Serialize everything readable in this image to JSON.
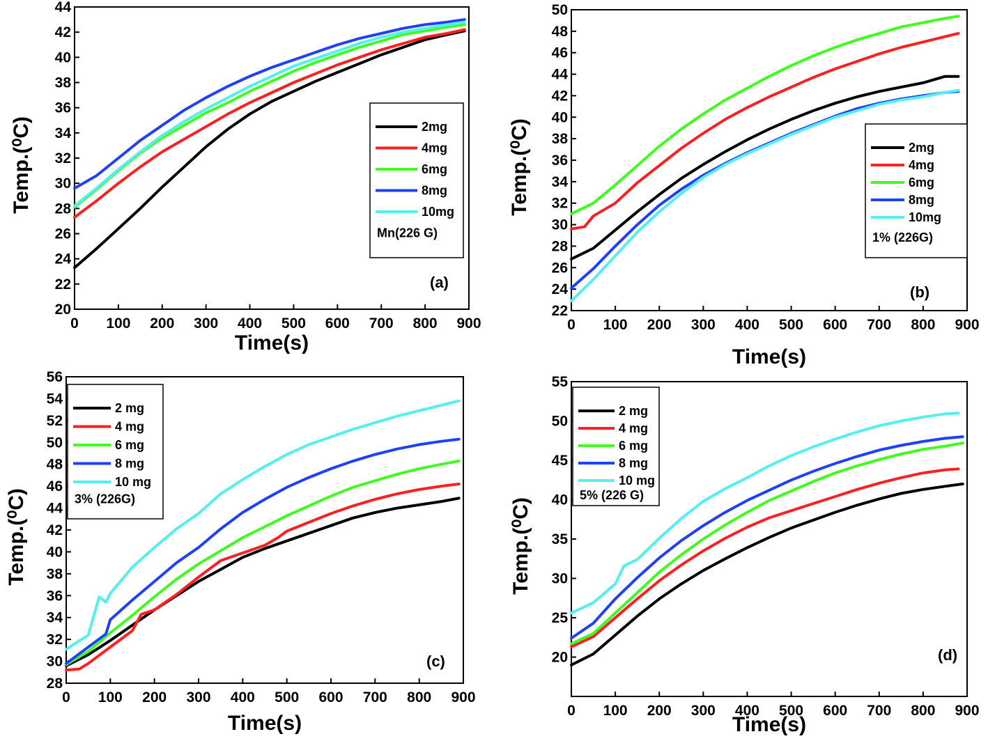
{
  "chart_data": [
    {
      "panel": "(a)",
      "type": "line",
      "xlabel": "Time(s)",
      "ylabel": "Temp.(⁰C)",
      "xlim": [
        0,
        900
      ],
      "ylim": [
        20,
        44
      ],
      "xticks": [
        0,
        100,
        200,
        300,
        400,
        500,
        600,
        700,
        800,
        900
      ],
      "yticks": [
        20,
        22,
        24,
        26,
        28,
        30,
        32,
        34,
        36,
        38,
        40,
        42,
        44
      ],
      "legend_title": "Mn(226 G)",
      "legend_position": "right",
      "series": [
        {
          "name": "2mg",
          "color": "#000000",
          "x": [
            0,
            50,
            100,
            150,
            200,
            250,
            300,
            350,
            400,
            450,
            500,
            550,
            600,
            650,
            700,
            750,
            800,
            850,
            890
          ],
          "y": [
            23.3,
            24.8,
            26.4,
            28.0,
            29.7,
            31.3,
            32.9,
            34.3,
            35.5,
            36.5,
            37.3,
            38.1,
            38.8,
            39.5,
            40.2,
            40.8,
            41.4,
            41.8,
            42.1
          ]
        },
        {
          "name": "4mg",
          "color": "#ff2020",
          "x": [
            0,
            50,
            100,
            150,
            200,
            250,
            300,
            350,
            400,
            450,
            500,
            550,
            600,
            650,
            700,
            750,
            800,
            850,
            890
          ],
          "y": [
            27.3,
            28.6,
            30.0,
            31.3,
            32.5,
            33.5,
            34.5,
            35.5,
            36.4,
            37.2,
            38.0,
            38.7,
            39.4,
            40.0,
            40.6,
            41.1,
            41.6,
            41.9,
            42.2
          ]
        },
        {
          "name": "6mg",
          "color": "#40ff20",
          "x": [
            0,
            50,
            100,
            150,
            200,
            250,
            300,
            350,
            400,
            450,
            500,
            550,
            600,
            650,
            700,
            750,
            800,
            850,
            890
          ],
          "y": [
            28.1,
            29.5,
            31.0,
            32.4,
            33.6,
            34.6,
            35.6,
            36.4,
            37.3,
            38.1,
            38.9,
            39.6,
            40.2,
            40.8,
            41.3,
            41.8,
            42.1,
            42.4,
            42.6
          ]
        },
        {
          "name": "8mg",
          "color": "#2040ff",
          "x": [
            0,
            50,
            100,
            150,
            200,
            250,
            300,
            350,
            400,
            450,
            500,
            550,
            600,
            650,
            700,
            750,
            800,
            850,
            890
          ],
          "y": [
            29.6,
            30.6,
            32.0,
            33.4,
            34.6,
            35.8,
            36.8,
            37.7,
            38.5,
            39.2,
            39.8,
            40.4,
            41.0,
            41.5,
            41.9,
            42.3,
            42.6,
            42.8,
            43.0
          ]
        },
        {
          "name": "10mg",
          "color": "#55f0ee",
          "x": [
            0,
            50,
            100,
            150,
            200,
            250,
            300,
            350,
            400,
            450,
            500,
            550,
            600,
            650,
            700,
            750,
            800,
            850,
            890
          ],
          "y": [
            28.2,
            29.6,
            31.1,
            32.5,
            33.8,
            34.9,
            35.9,
            36.8,
            37.7,
            38.5,
            39.3,
            39.9,
            40.5,
            41.1,
            41.6,
            42.0,
            42.3,
            42.6,
            42.8
          ]
        }
      ]
    },
    {
      "panel": "(b)",
      "type": "line",
      "xlabel": "Time(s)",
      "ylabel": "Temp.(⁰C)",
      "xlim": [
        0,
        900
      ],
      "ylim": [
        22,
        50
      ],
      "xticks": [
        0,
        100,
        200,
        300,
        400,
        500,
        600,
        700,
        800,
        900
      ],
      "yticks": [
        22,
        24,
        26,
        28,
        30,
        32,
        34,
        36,
        38,
        40,
        42,
        44,
        46,
        48,
        50
      ],
      "legend_title": "1% (226G)",
      "legend_position": "right",
      "series": [
        {
          "name": "2mg",
          "color": "#000000",
          "x": [
            0,
            50,
            100,
            150,
            200,
            250,
            300,
            350,
            400,
            450,
            500,
            550,
            600,
            650,
            700,
            750,
            800,
            850,
            880
          ],
          "y": [
            26.8,
            27.8,
            29.5,
            31.2,
            32.8,
            34.3,
            35.6,
            36.8,
            37.9,
            38.9,
            39.8,
            40.6,
            41.3,
            41.9,
            42.4,
            42.8,
            43.2,
            43.8,
            43.8
          ]
        },
        {
          "name": "4mg",
          "color": "#ff2020",
          "x": [
            0,
            30,
            50,
            100,
            150,
            200,
            250,
            300,
            350,
            400,
            450,
            500,
            550,
            600,
            650,
            700,
            750,
            800,
            850,
            880
          ],
          "y": [
            29.6,
            29.8,
            30.8,
            32.0,
            33.9,
            35.5,
            37.1,
            38.5,
            39.8,
            40.9,
            41.9,
            42.8,
            43.7,
            44.5,
            45.2,
            45.9,
            46.5,
            47.0,
            47.5,
            47.8
          ]
        },
        {
          "name": "6mg",
          "color": "#40ff20",
          "x": [
            0,
            50,
            100,
            150,
            200,
            250,
            300,
            350,
            400,
            450,
            500,
            550,
            600,
            650,
            700,
            750,
            800,
            850,
            880
          ],
          "y": [
            31.0,
            32.0,
            33.7,
            35.5,
            37.3,
            38.9,
            40.3,
            41.6,
            42.7,
            43.8,
            44.8,
            45.7,
            46.5,
            47.2,
            47.8,
            48.4,
            48.8,
            49.2,
            49.4
          ]
        },
        {
          "name": "8mg",
          "color": "#2040ff",
          "x": [
            0,
            50,
            100,
            150,
            200,
            250,
            300,
            350,
            400,
            450,
            500,
            550,
            600,
            650,
            700,
            750,
            800,
            850,
            880
          ],
          "y": [
            24.1,
            25.9,
            28.0,
            30.0,
            31.8,
            33.3,
            34.6,
            35.7,
            36.7,
            37.6,
            38.5,
            39.3,
            40.1,
            40.8,
            41.3,
            41.7,
            42.0,
            42.3,
            42.4
          ]
        },
        {
          "name": "10mg",
          "color": "#55f0ee",
          "x": [
            0,
            50,
            100,
            150,
            200,
            250,
            300,
            350,
            400,
            450,
            500,
            550,
            600,
            650,
            700,
            750,
            800,
            850,
            880
          ],
          "y": [
            22.9,
            24.9,
            27.1,
            29.3,
            31.2,
            32.9,
            34.4,
            35.6,
            36.6,
            37.5,
            38.4,
            39.2,
            40.0,
            40.6,
            41.2,
            41.6,
            41.9,
            42.3,
            42.5
          ]
        }
      ]
    },
    {
      "panel": "(c)",
      "type": "line",
      "xlabel": "Time(s)",
      "ylabel": "Temp.(⁰C)",
      "xlim": [
        0,
        900
      ],
      "ylim": [
        28,
        56
      ],
      "xticks": [
        0,
        100,
        200,
        300,
        400,
        500,
        600,
        700,
        800,
        900
      ],
      "yticks": [
        28,
        30,
        32,
        34,
        36,
        38,
        40,
        42,
        44,
        46,
        48,
        50,
        52,
        54,
        56
      ],
      "legend_title": "3% (226G)",
      "legend_position": "top-left",
      "series": [
        {
          "name": "2 mg",
          "color": "#000000",
          "x": [
            0,
            50,
            100,
            150,
            200,
            250,
            300,
            350,
            400,
            450,
            500,
            550,
            600,
            650,
            700,
            750,
            800,
            850,
            890
          ],
          "y": [
            29.6,
            30.6,
            31.9,
            33.3,
            34.7,
            36.0,
            37.3,
            38.4,
            39.5,
            40.3,
            41.0,
            41.7,
            42.4,
            43.1,
            43.6,
            44.0,
            44.3,
            44.6,
            44.9
          ]
        },
        {
          "name": "4 mg",
          "color": "#ff2020",
          "x": [
            0,
            30,
            50,
            100,
            150,
            170,
            200,
            250,
            300,
            350,
            400,
            450,
            480,
            500,
            550,
            600,
            650,
            700,
            750,
            800,
            850,
            890
          ],
          "y": [
            29.2,
            29.3,
            29.8,
            31.3,
            32.8,
            34.3,
            34.7,
            36.1,
            37.7,
            39.2,
            39.9,
            40.6,
            41.3,
            41.9,
            42.7,
            43.5,
            44.2,
            44.8,
            45.3,
            45.7,
            46.0,
            46.2
          ]
        },
        {
          "name": "6 mg",
          "color": "#40ff20",
          "x": [
            0,
            50,
            100,
            150,
            200,
            250,
            300,
            350,
            400,
            450,
            500,
            550,
            600,
            650,
            700,
            750,
            800,
            850,
            890
          ],
          "y": [
            29.7,
            30.9,
            32.6,
            34.2,
            35.9,
            37.5,
            38.9,
            40.1,
            41.3,
            42.3,
            43.3,
            44.2,
            45.1,
            45.9,
            46.5,
            47.1,
            47.6,
            48.0,
            48.3
          ]
        },
        {
          "name": "8 mg",
          "color": "#2040ff",
          "x": [
            0,
            50,
            90,
            100,
            150,
            200,
            250,
            300,
            350,
            400,
            450,
            500,
            550,
            600,
            650,
            700,
            750,
            800,
            850,
            890
          ],
          "y": [
            29.8,
            31.3,
            32.5,
            33.8,
            35.6,
            37.3,
            39.0,
            40.4,
            42.1,
            43.6,
            44.8,
            45.9,
            46.8,
            47.6,
            48.3,
            48.9,
            49.4,
            49.8,
            50.1,
            50.3
          ]
        },
        {
          "name": "10 mg",
          "color": "#55f0ee",
          "x": [
            0,
            50,
            75,
            90,
            100,
            150,
            200,
            250,
            300,
            350,
            400,
            450,
            500,
            550,
            600,
            650,
            700,
            750,
            800,
            850,
            890
          ],
          "y": [
            31.1,
            32.4,
            35.9,
            35.4,
            36.2,
            38.6,
            40.4,
            42.1,
            43.5,
            45.3,
            46.6,
            47.8,
            48.9,
            49.8,
            50.5,
            51.2,
            51.8,
            52.4,
            52.9,
            53.4,
            53.8
          ]
        }
      ]
    },
    {
      "panel": "(d)",
      "type": "line",
      "xlabel": "Time(s)",
      "ylabel": "Temp.(⁰C)",
      "xlim": [
        0,
        900
      ],
      "ylim": [
        15,
        55
      ],
      "xticks": [
        0,
        100,
        200,
        300,
        400,
        500,
        600,
        700,
        800,
        900
      ],
      "yticks": [
        20,
        25,
        30,
        35,
        40,
        45,
        50,
        55
      ],
      "legend_title": "5% (226 G)",
      "legend_position": "top-left",
      "series": [
        {
          "name": "2 mg",
          "color": "#000000",
          "x": [
            0,
            50,
            100,
            150,
            200,
            250,
            300,
            350,
            400,
            450,
            500,
            550,
            600,
            650,
            700,
            750,
            800,
            850,
            890
          ],
          "y": [
            19.0,
            20.4,
            22.8,
            25.2,
            27.4,
            29.3,
            31.0,
            32.5,
            33.9,
            35.2,
            36.4,
            37.4,
            38.4,
            39.3,
            40.1,
            40.8,
            41.3,
            41.7,
            42.0
          ]
        },
        {
          "name": "4 mg",
          "color": "#ff2020",
          "x": [
            0,
            50,
            100,
            150,
            200,
            250,
            300,
            350,
            400,
            450,
            500,
            550,
            600,
            650,
            700,
            750,
            800,
            850,
            880
          ],
          "y": [
            21.3,
            22.6,
            25.0,
            27.4,
            29.7,
            31.7,
            33.5,
            35.1,
            36.5,
            37.7,
            38.6,
            39.5,
            40.4,
            41.3,
            42.1,
            42.8,
            43.4,
            43.8,
            43.9
          ]
        },
        {
          "name": "6 mg",
          "color": "#40ff20",
          "x": [
            0,
            50,
            100,
            150,
            200,
            250,
            300,
            350,
            400,
            450,
            500,
            550,
            600,
            650,
            700,
            750,
            800,
            850,
            890
          ],
          "y": [
            21.7,
            23.0,
            25.6,
            28.2,
            30.8,
            33.0,
            35.0,
            36.8,
            38.4,
            39.9,
            41.1,
            42.3,
            43.4,
            44.3,
            45.1,
            45.8,
            46.4,
            46.8,
            47.2
          ]
        },
        {
          "name": "8 mg",
          "color": "#2040ff",
          "x": [
            0,
            50,
            100,
            150,
            200,
            250,
            300,
            350,
            400,
            450,
            500,
            550,
            600,
            650,
            700,
            750,
            800,
            850,
            890
          ],
          "y": [
            22.4,
            24.3,
            27.4,
            30.1,
            32.6,
            34.8,
            36.7,
            38.4,
            39.9,
            41.2,
            42.5,
            43.6,
            44.6,
            45.5,
            46.3,
            46.9,
            47.4,
            47.8,
            48.0
          ]
        },
        {
          "name": "10 mg",
          "color": "#55f0ee",
          "x": [
            0,
            50,
            100,
            120,
            150,
            200,
            250,
            300,
            350,
            400,
            450,
            500,
            550,
            600,
            650,
            700,
            750,
            800,
            850,
            880
          ],
          "y": [
            25.6,
            26.9,
            29.3,
            31.6,
            32.4,
            35.1,
            37.6,
            39.8,
            41.4,
            42.8,
            44.3,
            45.6,
            46.7,
            47.7,
            48.6,
            49.4,
            50.0,
            50.5,
            50.9,
            51.0
          ]
        }
      ]
    }
  ]
}
